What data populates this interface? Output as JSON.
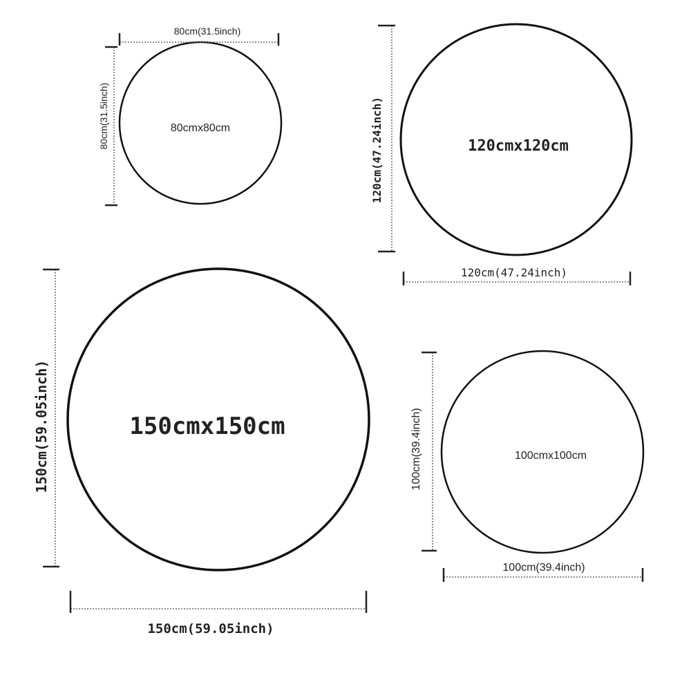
{
  "circles": {
    "c80": {
      "label": "80cmx80cm",
      "width_label": "80cm(31.5inch)",
      "height_label": "80cm(31.5inch)"
    },
    "c120": {
      "label": "120cmx120cm",
      "width_label": "120cm(47.24inch)",
      "height_label": "120cm(47.24inch)"
    },
    "c150": {
      "label": "150cmx150cm",
      "width_label": "150cm(59.05inch)",
      "height_label": "150cm(59.05inch)"
    },
    "c100": {
      "label": "100cmx100cm",
      "width_label": "100cm(39.4inch)",
      "height_label": "100cm(39.4inch)"
    }
  }
}
